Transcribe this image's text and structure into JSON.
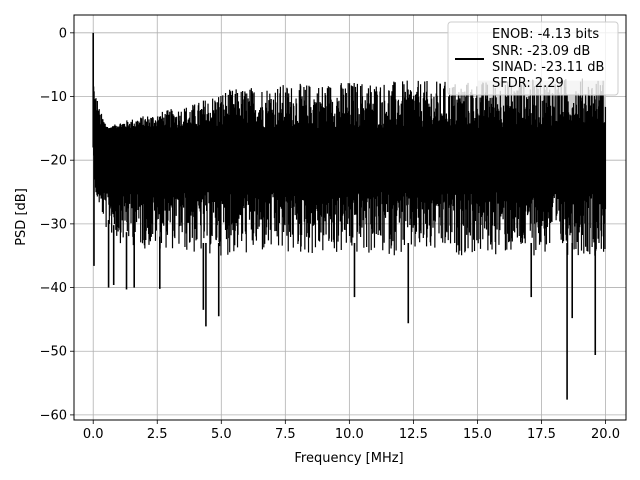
{
  "chart_data": {
    "type": "line",
    "xlabel": "Frequency [MHz]",
    "ylabel": "PSD [dB]",
    "xlim": [
      -0.75,
      20.8
    ],
    "ylim": [
      -60.8,
      2.8
    ],
    "xticks": [
      0.0,
      2.5,
      5.0,
      7.5,
      10.0,
      12.5,
      15.0,
      17.5,
      20.0
    ],
    "xtick_labels": [
      "0.0",
      "2.5",
      "5.0",
      "7.5",
      "10.0",
      "12.5",
      "15.0",
      "17.5",
      "20.0"
    ],
    "yticks": [
      0,
      -10,
      -20,
      -30,
      -40,
      -50,
      -60
    ],
    "ytick_labels": [
      "0",
      "−10",
      "−20",
      "−30",
      "−40",
      "−50",
      "−60"
    ],
    "grid": true,
    "legend_position": "top-right",
    "legend": {
      "lines": [
        "ENOB: -4.13 bits",
        "SNR: -23.09 dB",
        "SINAD: -23.11 dB",
        "SFDR: 2.29"
      ]
    },
    "series": [
      {
        "color": "#000000",
        "band_upper": {
          "x": [
            0.0,
            0.05,
            0.25,
            0.6,
            1.0,
            2.0,
            3.0,
            4.0,
            5.0,
            6.0,
            7.0,
            8.0,
            10.0,
            12.0,
            14.0,
            16.0,
            18.0,
            20.0
          ],
          "y": [
            0.0,
            -7.0,
            -12.0,
            -15.0,
            -14.0,
            -13.0,
            -12.0,
            -11.0,
            -9.0,
            -8.5,
            -8.0,
            -8.0,
            -7.5,
            -7.5,
            -7.5,
            -7.5,
            -7.0,
            -7.0
          ]
        },
        "band_core_upper": -15.0,
        "band_core_lower": -25.0,
        "band_lower": {
          "x": [
            0.0,
            0.1,
            0.3,
            0.5,
            1.0,
            2.0,
            3.0,
            4.0,
            5.0,
            6.0,
            8.0,
            10.0,
            12.0,
            14.0,
            16.0,
            18.0,
            20.0
          ],
          "y": [
            -18.0,
            -25.0,
            -28.0,
            -31.0,
            -33.0,
            -34.0,
            -34.0,
            -35.0,
            -35.0,
            -35.0,
            -35.0,
            -35.0,
            -35.0,
            -35.0,
            -35.0,
            -35.0,
            -35.0
          ]
        },
        "deep_dips": [
          {
            "x": 0.03,
            "y": -36.6
          },
          {
            "x": 0.6,
            "y": -40.0
          },
          {
            "x": 0.8,
            "y": -39.6
          },
          {
            "x": 1.3,
            "y": -40.3
          },
          {
            "x": 1.6,
            "y": -40.0
          },
          {
            "x": 2.6,
            "y": -40.2
          },
          {
            "x": 4.3,
            "y": -43.5
          },
          {
            "x": 4.4,
            "y": -46.1
          },
          {
            "x": 4.9,
            "y": -44.5
          },
          {
            "x": 10.2,
            "y": -41.5
          },
          {
            "x": 12.3,
            "y": -45.6
          },
          {
            "x": 17.1,
            "y": -41.5
          },
          {
            "x": 18.5,
            "y": -57.6
          },
          {
            "x": 18.7,
            "y": -44.8
          },
          {
            "x": 19.6,
            "y": -50.6
          }
        ],
        "gray_segment": {
          "x": [
            15.0,
            20.0
          ],
          "y_top": -7.5,
          "color": "#cccccc"
        }
      }
    ]
  }
}
